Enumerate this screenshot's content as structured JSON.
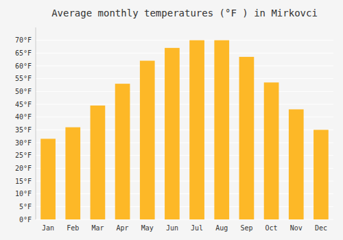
{
  "chart_data": {
    "type": "bar",
    "title": "Average monthly temperatures (°F ) in Mirkovci",
    "categories": [
      "Jan",
      "Feb",
      "Mar",
      "Apr",
      "May",
      "Jun",
      "Jul",
      "Aug",
      "Sep",
      "Oct",
      "Nov",
      "Dec"
    ],
    "values": [
      31.5,
      36,
      44.5,
      53,
      62,
      67,
      70,
      70,
      63.5,
      53.5,
      43,
      35
    ],
    "color": "#FDB827",
    "ylim": [
      0,
      75
    ],
    "yticks": [
      {
        "value": 0,
        "label": "0°F"
      },
      {
        "value": 5,
        "label": "5°F"
      },
      {
        "value": 10,
        "label": "10°F"
      },
      {
        "value": 15,
        "label": "15°F"
      },
      {
        "value": 20,
        "label": "20°F"
      },
      {
        "value": 25,
        "label": "25°F"
      },
      {
        "value": 30,
        "label": "30°F"
      },
      {
        "value": 35,
        "label": "35°F"
      },
      {
        "value": 40,
        "label": "40°F"
      },
      {
        "value": 45,
        "label": "45°F"
      },
      {
        "value": 50,
        "label": "50°F"
      },
      {
        "value": 55,
        "label": "55°F"
      },
      {
        "value": 60,
        "label": "60°F"
      },
      {
        "value": 65,
        "label": "65°F"
      },
      {
        "value": 70,
        "label": "70°F"
      }
    ],
    "grid": true
  }
}
